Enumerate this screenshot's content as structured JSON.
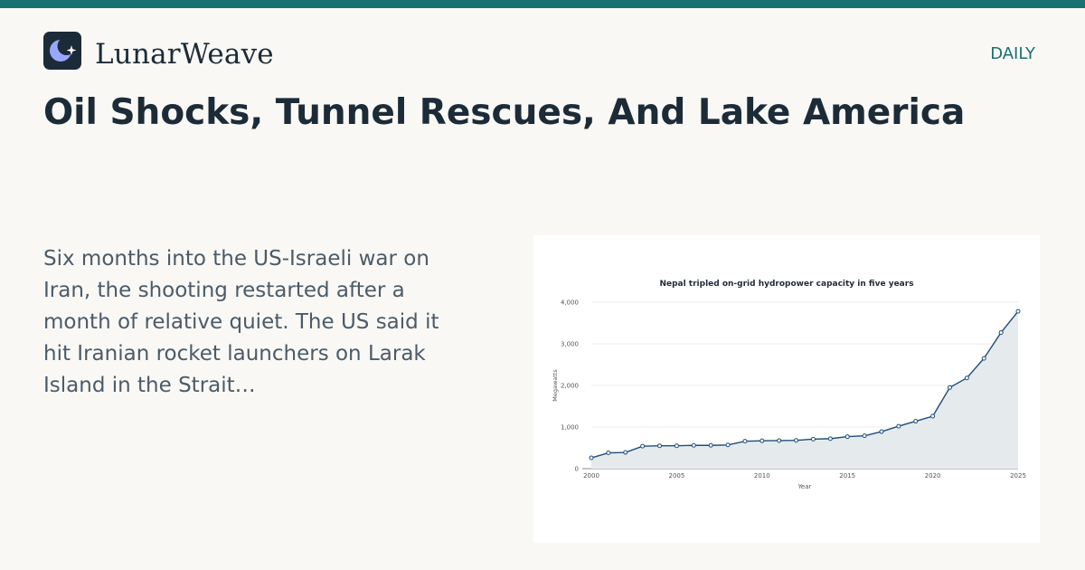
{
  "brand": {
    "name": "LunarWeave",
    "logo_icon": "crescent-moon-star-icon",
    "logo_bg": "#1c2b38",
    "moon_color": "#9aa7ff"
  },
  "section": {
    "label": "DAILY"
  },
  "article": {
    "headline": "Oil Shocks, Tunnel Rescues, And Lake America",
    "excerpt": "Six months into the US-Israeli war on Iran, the shooting restarted after a month of relative quiet. The US said it hit Iranian rocket launchers on Larak Island in the Strait…"
  },
  "colors": {
    "accent": "#1a7170",
    "heading": "#1c2b38",
    "body_text": "#4b5b68",
    "line": "#1f4e79",
    "area_fill": "#e5eaec"
  },
  "chart_data": {
    "type": "area",
    "title": "Nepal tripled on-grid hydropower capacity in five years",
    "xlabel": "Year",
    "ylabel": "Megawatts",
    "x": [
      2000,
      2001,
      2002,
      2003,
      2004,
      2005,
      2006,
      2007,
      2008,
      2009,
      2010,
      2011,
      2012,
      2013,
      2014,
      2015,
      2016,
      2017,
      2018,
      2019,
      2020,
      2021,
      2022,
      2023,
      2024,
      2025
    ],
    "series": [
      {
        "values": [
          260,
          380,
          390,
          540,
          550,
          550,
          560,
          560,
          570,
          660,
          670,
          675,
          680,
          710,
          720,
          770,
          790,
          890,
          1020,
          1140,
          1260,
          1950,
          2180,
          2650,
          3270,
          3780
        ]
      }
    ],
    "xlim": [
      2000,
      2025
    ],
    "ylim": [
      0,
      4000
    ],
    "x_ticks": [
      2000,
      2005,
      2010,
      2015,
      2020,
      2025
    ],
    "y_ticks": [
      0,
      1000,
      2000,
      3000,
      4000
    ],
    "y_tick_labels": [
      "0",
      "1,000",
      "2,000",
      "3,000",
      "4,000"
    ],
    "grid": "horizontal",
    "legend": "none"
  }
}
